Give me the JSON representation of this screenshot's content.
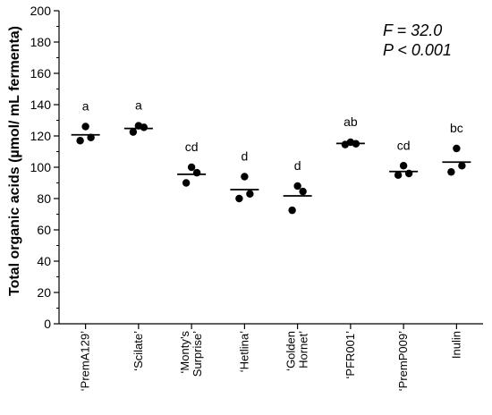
{
  "chart_data": {
    "type": "scatter",
    "ylabel": "Total organic acids (µmol/ mL fermenta)",
    "xlabel": "",
    "ylim": [
      0,
      200
    ],
    "y_ticks": [
      0,
      20,
      40,
      60,
      80,
      100,
      120,
      140,
      160,
      180,
      200
    ],
    "grid": false,
    "annotations": [
      "F = 32.0",
      "P < 0.001"
    ],
    "categories": [
      {
        "label": [
          "‘PremA129’"
        ],
        "points": [
          126,
          119,
          117
        ],
        "mean": 120.7,
        "letter": "a"
      },
      {
        "label": [
          "‘Scilate’"
        ],
        "points": [
          126.5,
          125.5,
          122.5
        ],
        "mean": 124.8,
        "letter": "a"
      },
      {
        "label": [
          "‘Monty’s",
          "Surprise’"
        ],
        "points": [
          100,
          96.5,
          90
        ],
        "mean": 95.5,
        "letter": "cd"
      },
      {
        "label": [
          "‘Hetlina’"
        ],
        "points": [
          94,
          83,
          80
        ],
        "mean": 85.7,
        "letter": "d"
      },
      {
        "label": [
          "‘Golden",
          "Hornet’"
        ],
        "points": [
          88,
          84.5,
          72.5
        ],
        "mean": 81.7,
        "letter": "d"
      },
      {
        "label": [
          "‘PFR001’"
        ],
        "points": [
          116,
          115,
          114.5
        ],
        "mean": 115.2,
        "letter": "ab"
      },
      {
        "label": [
          "‘PremP009’"
        ],
        "points": [
          101,
          96,
          95
        ],
        "mean": 97.3,
        "letter": "cd"
      },
      {
        "label": [
          "Inulin"
        ],
        "points": [
          112,
          101,
          97
        ],
        "mean": 103.3,
        "letter": "bc"
      }
    ]
  }
}
